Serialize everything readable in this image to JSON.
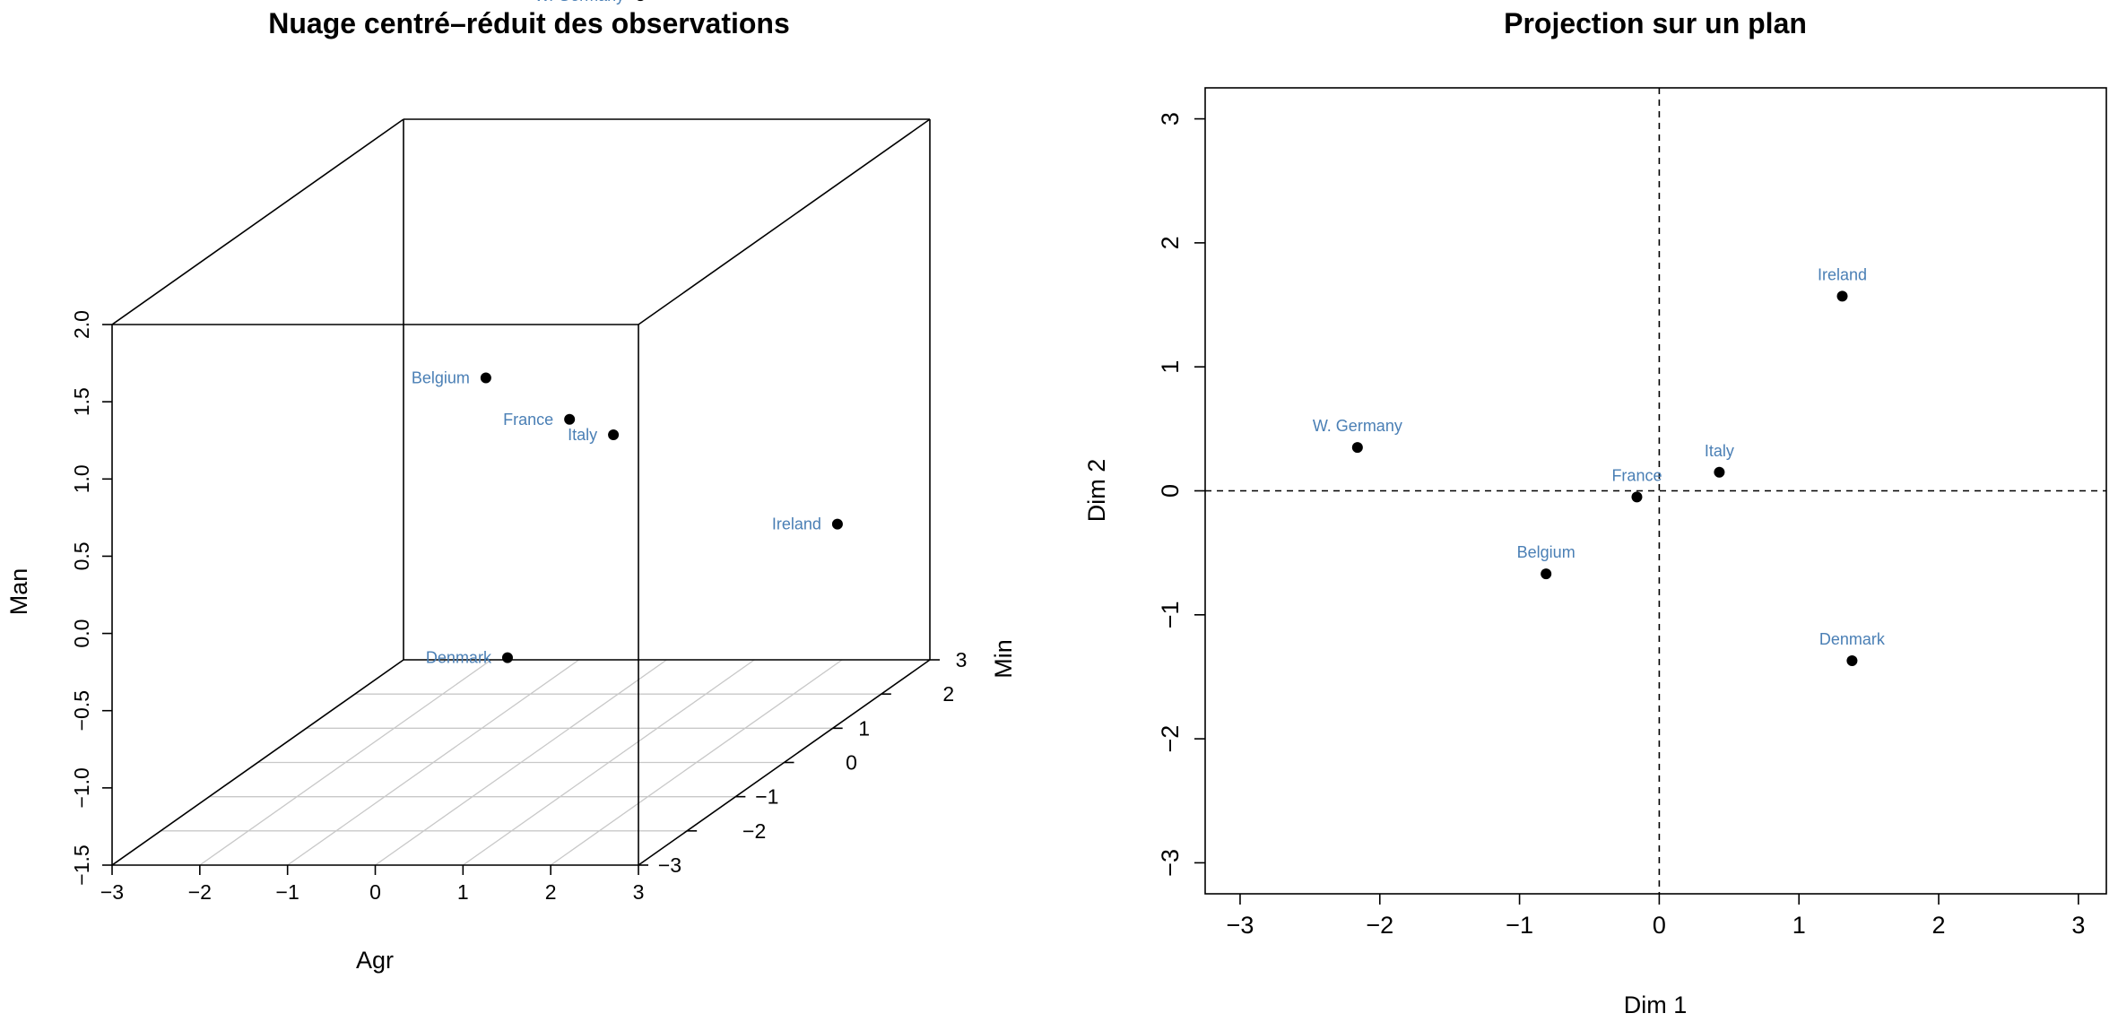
{
  "chart_data": [
    {
      "type": "scatter3d",
      "title": "Nuage centré–réduit des observations",
      "xlabel": "Agr",
      "ylabel": "Min",
      "zlabel": "Man",
      "xlim": [
        -3,
        3
      ],
      "ylim": [
        -3,
        3
      ],
      "zlim": [
        -1.5,
        2.0
      ],
      "x_ticks": [
        "−3",
        "−2",
        "−1",
        "0",
        "1",
        "2",
        "3"
      ],
      "y_ticks": [
        "−3",
        "−2",
        "−1",
        "0",
        "1",
        "2",
        "3"
      ],
      "z_ticks": [
        "−1.5",
        "−1.0",
        "−0.5",
        "0.0",
        "0.5",
        "1.0",
        "1.5",
        "2.0"
      ],
      "grid": "floor",
      "label_color": "#4a7fb5",
      "points": [
        {
          "label": "W. Germany",
          "x": -0.3,
          "y": 3.0,
          "z": 2.8
        },
        {
          "label": "Belgium",
          "x": -0.4,
          "y": 0.0,
          "z": 0.99
        },
        {
          "label": "France",
          "x": 0.0,
          "y": 1.0,
          "z": 0.5
        },
        {
          "label": "Italy",
          "x": 0.5,
          "y": 1.0,
          "z": 0.4
        },
        {
          "label": "Ireland",
          "x": 2.5,
          "y": 2.0,
          "z": -0.4
        },
        {
          "label": "Denmark",
          "x": 0.4,
          "y": -1.0,
          "z": -0.6
        }
      ]
    },
    {
      "type": "scatter",
      "title": "Projection sur un plan",
      "xlabel": "Dim 1",
      "ylabel": "Dim 2",
      "xlim": [
        -3.25,
        3.2
      ],
      "ylim": [
        -3.25,
        3.25
      ],
      "x_ticks": [
        "−3",
        "−2",
        "−1",
        "0",
        "1",
        "2",
        "3"
      ],
      "y_ticks": [
        "−3",
        "−2",
        "−1",
        "0",
        "1",
        "2",
        "3"
      ],
      "reference_lines": {
        "x": 0,
        "y": 0,
        "style": "dashed"
      },
      "label_color": "#4a7fb5",
      "points": [
        {
          "label": "W. Germany",
          "x": -2.16,
          "y": 0.35
        },
        {
          "label": "France",
          "x": -0.16,
          "y": -0.05
        },
        {
          "label": "Italy",
          "x": 0.43,
          "y": 0.15
        },
        {
          "label": "Ireland",
          "x": 1.31,
          "y": 1.57
        },
        {
          "label": "Belgium",
          "x": -0.81,
          "y": -0.67
        },
        {
          "label": "Denmark",
          "x": 1.38,
          "y": -1.37
        }
      ]
    }
  ]
}
